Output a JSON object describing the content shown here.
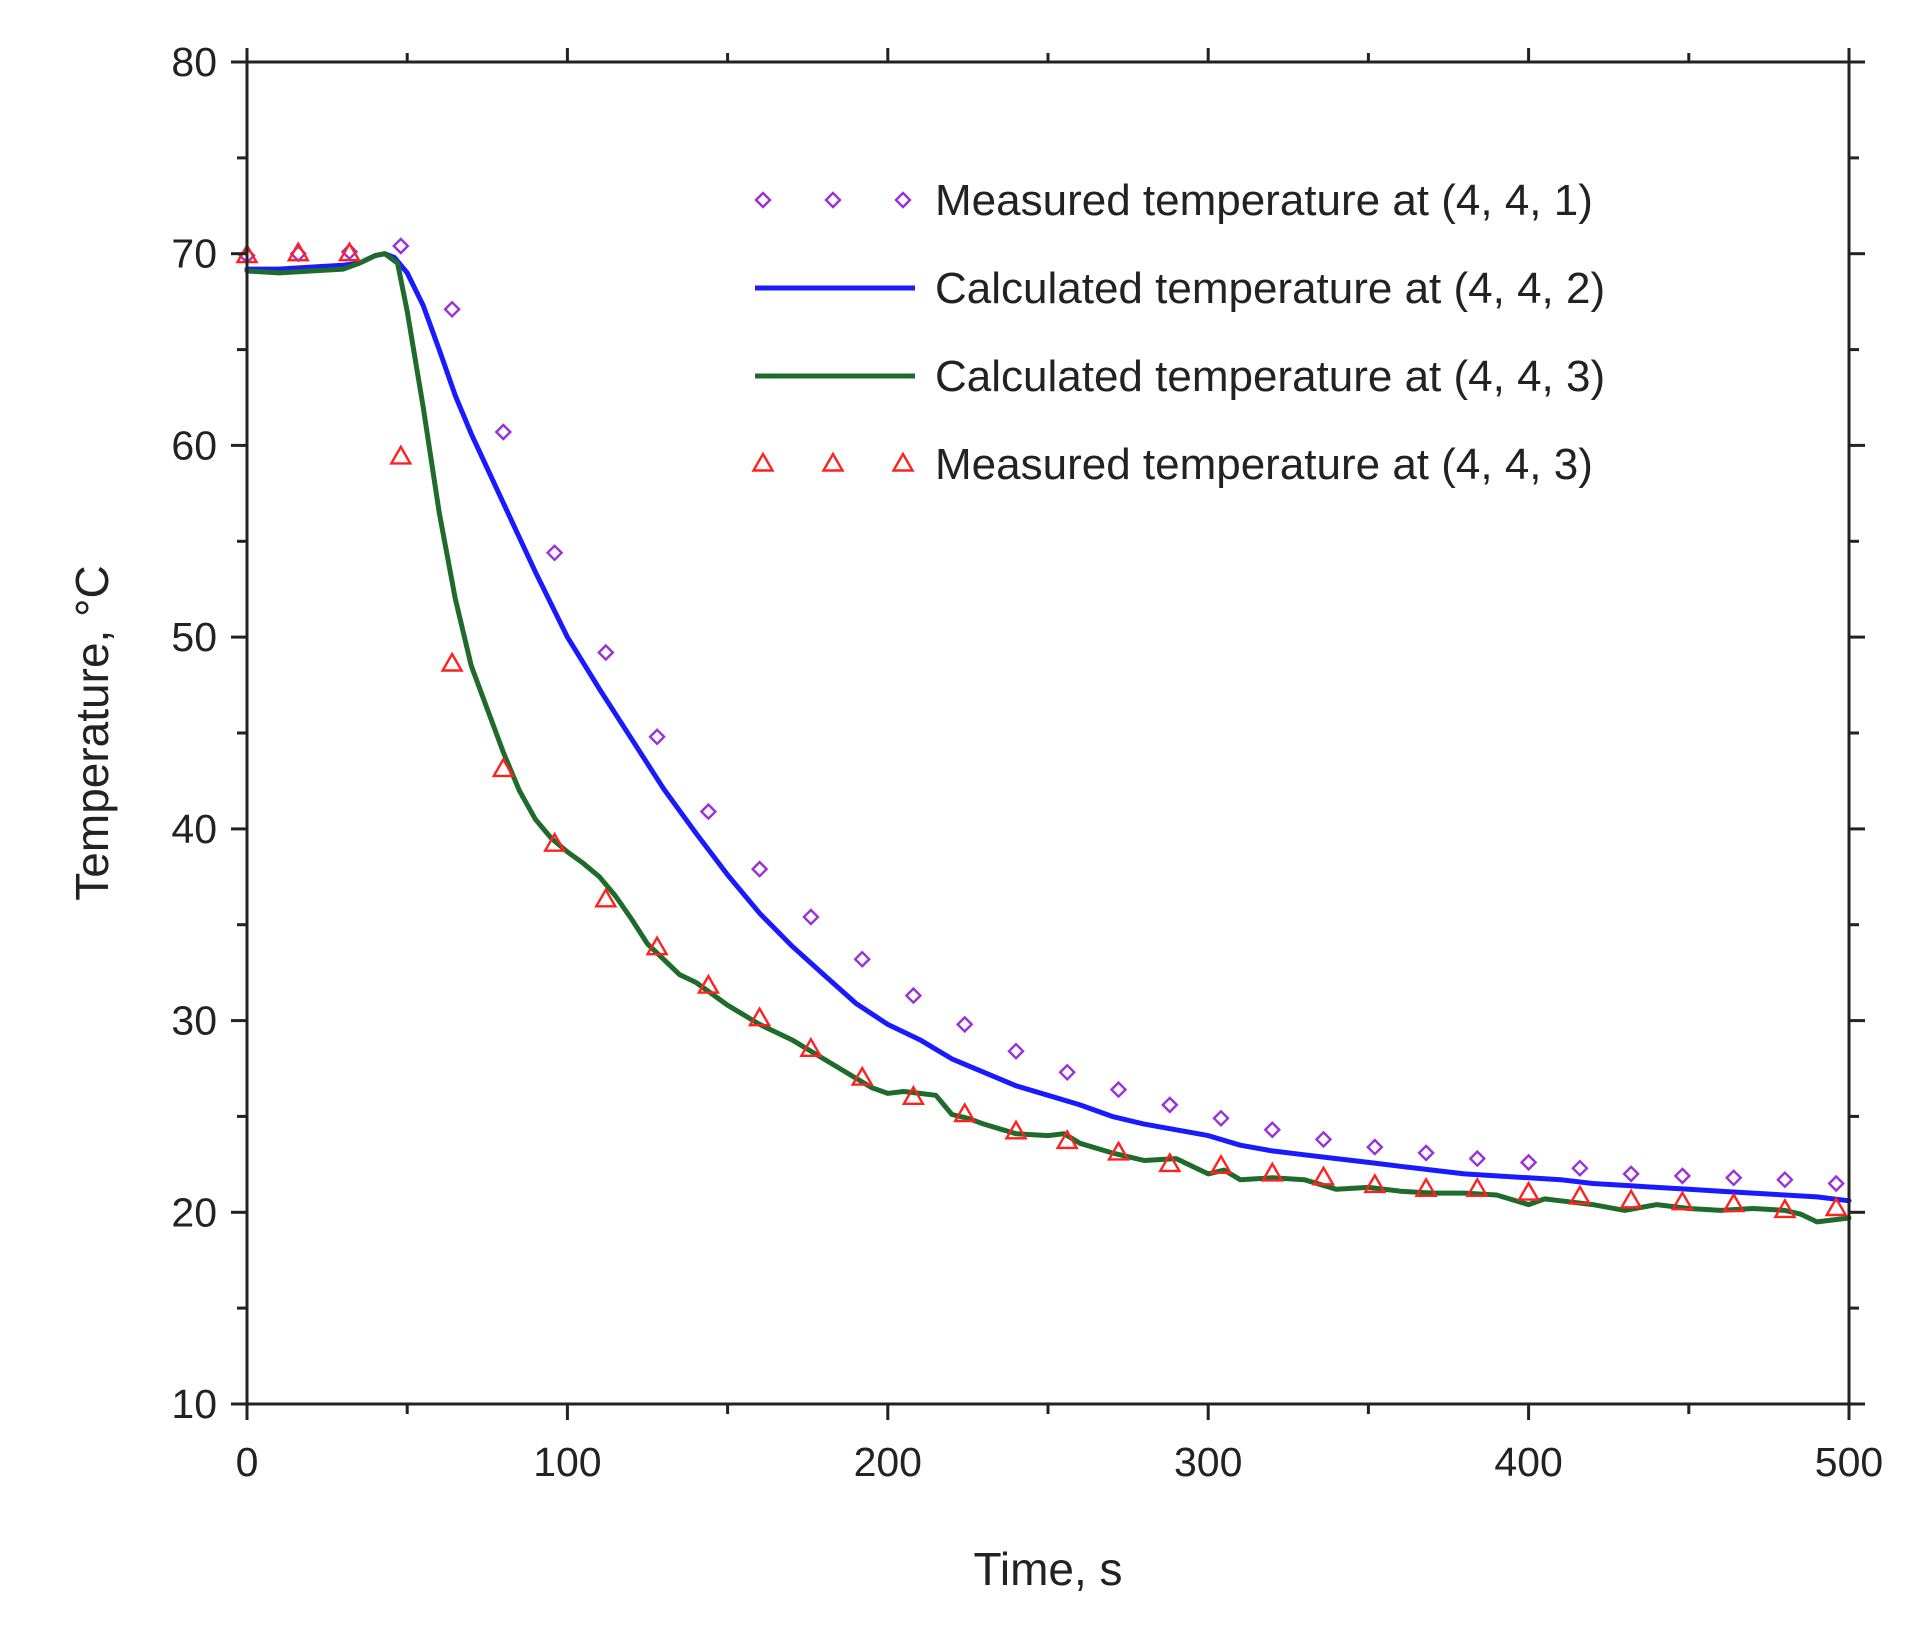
{
  "chart_data": {
    "type": "line",
    "title": "",
    "xlabel": "Time, s",
    "ylabel": "Temperature, °C",
    "xlim": [
      0,
      500
    ],
    "ylim": [
      10,
      80
    ],
    "xticks": [
      0,
      100,
      200,
      300,
      400,
      500
    ],
    "xtick_labels": [
      "0",
      "100",
      "200",
      "300",
      "400",
      "500"
    ],
    "yticks": [
      10,
      20,
      30,
      40,
      50,
      60,
      70,
      80
    ],
    "ytick_labels": [
      "10",
      "20",
      "30",
      "40",
      "50",
      "60",
      "70",
      "80"
    ],
    "grid": false,
    "legend_position": "top-right",
    "series": [
      {
        "name": "Measured temperature at (4, 4, 1)",
        "kind": "scatter",
        "marker": "diamond",
        "color": "#9b30d9",
        "x": [
          0,
          16,
          32,
          48,
          64,
          80,
          96,
          112,
          128,
          144,
          160,
          176,
          192,
          208,
          224,
          240,
          256,
          272,
          288,
          304,
          320,
          336,
          352,
          368,
          384,
          400,
          416,
          432,
          448,
          464,
          480,
          496
        ],
        "y": [
          69.9,
          70.0,
          70.1,
          70.4,
          67.1,
          60.7,
          54.4,
          49.2,
          44.8,
          40.9,
          37.9,
          35.4,
          33.2,
          31.3,
          29.8,
          28.4,
          27.3,
          26.4,
          25.6,
          24.9,
          24.3,
          23.8,
          23.4,
          23.1,
          22.8,
          22.6,
          22.3,
          22.0,
          21.9,
          21.8,
          21.7,
          21.5
        ]
      },
      {
        "name": "Calculated temperature at (4, 4, 2)",
        "kind": "line",
        "color": "#1a1aff",
        "x": [
          0,
          10,
          20,
          30,
          35,
          40,
          43,
          46,
          50,
          55,
          60,
          65,
          70,
          80,
          90,
          100,
          110,
          120,
          130,
          140,
          150,
          160,
          170,
          180,
          190,
          200,
          210,
          220,
          230,
          240,
          250,
          260,
          270,
          280,
          290,
          300,
          310,
          320,
          330,
          340,
          350,
          360,
          370,
          380,
          390,
          400,
          410,
          420,
          430,
          440,
          450,
          460,
          470,
          480,
          490,
          500
        ],
        "y": [
          69.2,
          69.2,
          69.3,
          69.4,
          69.5,
          69.9,
          70.0,
          69.8,
          69.0,
          67.3,
          65.0,
          62.6,
          60.6,
          57.0,
          53.4,
          50.0,
          47.3,
          44.7,
          42.1,
          39.8,
          37.6,
          35.6,
          33.9,
          32.4,
          30.9,
          29.8,
          29.0,
          28.0,
          27.3,
          26.6,
          26.1,
          25.6,
          25.0,
          24.6,
          24.3,
          24.0,
          23.5,
          23.2,
          23.0,
          22.8,
          22.6,
          22.4,
          22.2,
          22.0,
          21.9,
          21.8,
          21.7,
          21.5,
          21.4,
          21.3,
          21.2,
          21.1,
          21.0,
          20.9,
          20.8,
          20.6
        ]
      },
      {
        "name": "Calculated temperature at (4, 4, 3)",
        "kind": "line",
        "color": "#1f6b2c",
        "x": [
          0,
          10,
          20,
          30,
          35,
          40,
          43,
          47,
          50,
          55,
          60,
          65,
          70,
          80,
          85,
          90,
          95,
          100,
          105,
          110,
          115,
          120,
          125,
          130,
          135,
          140,
          150,
          160,
          170,
          180,
          190,
          195,
          200,
          205,
          210,
          215,
          220,
          225,
          230,
          240,
          250,
          255,
          260,
          270,
          280,
          290,
          300,
          305,
          310,
          320,
          330,
          340,
          350,
          360,
          370,
          380,
          390,
          400,
          405,
          410,
          420,
          430,
          440,
          450,
          460,
          470,
          480,
          485,
          490,
          500
        ],
        "y": [
          69.1,
          69.0,
          69.1,
          69.2,
          69.5,
          69.9,
          70.0,
          69.5,
          67.0,
          62.0,
          56.5,
          52.0,
          48.5,
          44.0,
          42.0,
          40.5,
          39.5,
          38.8,
          38.2,
          37.5,
          36.5,
          35.3,
          34.0,
          33.2,
          32.4,
          32.0,
          30.8,
          29.8,
          29.0,
          28.0,
          27.0,
          26.5,
          26.2,
          26.3,
          26.2,
          26.1,
          25.1,
          24.9,
          24.6,
          24.1,
          24.0,
          24.1,
          23.6,
          23.1,
          22.7,
          22.8,
          22.0,
          22.2,
          21.7,
          21.8,
          21.7,
          21.2,
          21.3,
          21.1,
          21.0,
          21.0,
          20.9,
          20.4,
          20.7,
          20.6,
          20.4,
          20.1,
          20.4,
          20.2,
          20.1,
          20.2,
          20.1,
          19.9,
          19.5,
          19.7
        ]
      },
      {
        "name": "Measured temperature at (4, 4, 3)",
        "kind": "scatter",
        "marker": "triangle",
        "color": "#ff2020",
        "x": [
          0,
          16,
          32,
          48,
          64,
          80,
          96,
          112,
          128,
          144,
          160,
          176,
          192,
          208,
          224,
          240,
          256,
          272,
          288,
          304,
          320,
          336,
          352,
          368,
          384,
          400,
          416,
          432,
          448,
          464,
          480,
          496
        ],
        "y": [
          69.9,
          70.0,
          70.0,
          59.4,
          48.6,
          43.1,
          39.2,
          36.3,
          33.8,
          31.8,
          30.1,
          28.5,
          27.0,
          26.0,
          25.1,
          24.2,
          23.7,
          23.1,
          22.5,
          22.4,
          22.0,
          21.8,
          21.4,
          21.2,
          21.2,
          21.0,
          20.8,
          20.6,
          20.5,
          20.4,
          20.1,
          20.2
        ]
      }
    ]
  }
}
